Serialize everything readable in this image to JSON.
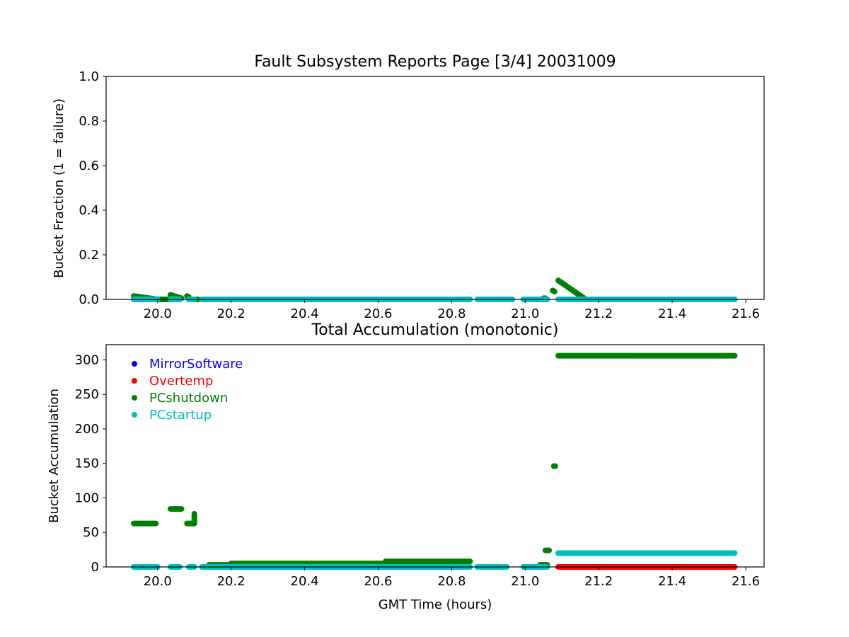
{
  "figure": {
    "top_title": "Fault Subsystem Reports Page [3/4] 20031009",
    "bottom_title": "Total Accumulation (monotonic)",
    "top_ylabel": "Bucket Fraction (1 = failure)",
    "bottom_ylabel": "Bucket Accumulation",
    "xlabel": "GMT Time (hours)"
  },
  "colors": {
    "MirrorSoftware": "#0000ff",
    "Overtemp": "#ff0000",
    "PCshutdown": "#008000",
    "PCstartup": "#00bfbf"
  },
  "chart_data": [
    {
      "type": "scatter",
      "title": "Fault Subsystem Reports Page [3/4] 20031009",
      "xlabel": "",
      "ylabel": "Bucket Fraction (1 = failure)",
      "xlim": [
        19.86,
        21.65
      ],
      "ylim": [
        0,
        1
      ],
      "xticks": [
        "20.0",
        "20.2",
        "20.4",
        "20.6",
        "20.8",
        "21.0",
        "21.2",
        "21.4",
        "21.6"
      ],
      "yticks": [
        "0.0",
        "0.2",
        "0.4",
        "0.6",
        "0.8",
        "1.0"
      ],
      "grid": false,
      "series": [
        {
          "name": "PCshutdown",
          "segments": [
            {
              "x": [
                19.935,
                20.0
              ],
              "y": [
                0.015,
                0.0
              ]
            },
            {
              "x": [
                20.0,
                20.035
              ],
              "y": [
                0.0,
                0.0
              ]
            },
            {
              "x": [
                20.035,
                20.065
              ],
              "y": [
                0.02,
                0.005
              ]
            },
            {
              "x": [
                20.08,
                20.085
              ],
              "y": [
                0.015,
                0.01
              ]
            },
            {
              "x": [
                20.085,
                20.11
              ],
              "y": [
                0.0,
                0.0
              ]
            },
            {
              "x": [
                21.05,
                21.055
              ],
              "y": [
                0.005,
                0.005
              ]
            },
            {
              "x": [
                21.075,
                21.08
              ],
              "y": [
                0.04,
                0.035
              ]
            },
            {
              "x": [
                21.09,
                21.165
              ],
              "y": [
                0.085,
                0.0
              ]
            },
            {
              "x": [
                21.165,
                21.57
              ],
              "y": [
                0.0,
                0.0
              ]
            }
          ]
        },
        {
          "name": "PCstartup",
          "segments": [
            {
              "x": [
                19.935,
                20.0
              ],
              "y": [
                0.0,
                0.0
              ]
            },
            {
              "x": [
                20.035,
                20.06
              ],
              "y": [
                0.0,
                0.0
              ]
            },
            {
              "x": [
                20.085,
                20.1
              ],
              "y": [
                0.0,
                0.0
              ]
            },
            {
              "x": [
                20.12,
                20.85
              ],
              "y": [
                0.0,
                0.0
              ]
            },
            {
              "x": [
                20.87,
                20.95
              ],
              "y": [
                0.0,
                0.0
              ]
            },
            {
              "x": [
                20.955,
                20.965
              ],
              "y": [
                0.0,
                0.0
              ]
            },
            {
              "x": [
                20.995,
                21.06
              ],
              "y": [
                0.0,
                0.0
              ]
            },
            {
              "x": [
                21.09,
                21.57
              ],
              "y": [
                0.0,
                0.0
              ]
            }
          ]
        }
      ]
    },
    {
      "type": "scatter",
      "title": "Total Accumulation (monotonic)",
      "xlabel": "GMT Time (hours)",
      "ylabel": "Bucket Accumulation",
      "xlim": [
        19.86,
        21.65
      ],
      "ylim": [
        0,
        322
      ],
      "xticks": [
        "20.0",
        "20.2",
        "20.4",
        "20.6",
        "20.8",
        "21.0",
        "21.2",
        "21.4",
        "21.6"
      ],
      "yticks": [
        "0",
        "50",
        "100",
        "150",
        "200",
        "250",
        "300"
      ],
      "grid": false,
      "legend": "top-left",
      "series": [
        {
          "name": "MirrorSoftware",
          "segments": []
        },
        {
          "name": "Overtemp",
          "segments": [
            {
              "x": [
                21.09,
                21.57
              ],
              "y": [
                0,
                0
              ]
            }
          ]
        },
        {
          "name": "PCshutdown",
          "segments": [
            {
              "x": [
                19.935,
                19.995
              ],
              "y": [
                63,
                63
              ]
            },
            {
              "x": [
                20.035,
                20.065
              ],
              "y": [
                84,
                84
              ]
            },
            {
              "x": [
                20.08,
                20.1
              ],
              "y": [
                63,
                63
              ]
            },
            {
              "x": [
                20.1,
                20.1
              ],
              "y": [
                63,
                77
              ]
            },
            {
              "x": [
                20.14,
                20.2
              ],
              "y": [
                3,
                3
              ]
            },
            {
              "x": [
                20.2,
                20.62
              ],
              "y": [
                5,
                5
              ]
            },
            {
              "x": [
                20.62,
                20.85
              ],
              "y": [
                8,
                8
              ]
            },
            {
              "x": [
                21.04,
                21.06
              ],
              "y": [
                3,
                3
              ]
            },
            {
              "x": [
                21.055,
                21.065
              ],
              "y": [
                24,
                24
              ]
            },
            {
              "x": [
                21.078,
                21.082
              ],
              "y": [
                146,
                146
              ]
            },
            {
              "x": [
                21.09,
                21.57
              ],
              "y": [
                306,
                306
              ]
            }
          ]
        },
        {
          "name": "PCstartup",
          "segments": [
            {
              "x": [
                19.935,
                20.0
              ],
              "y": [
                0,
                0
              ]
            },
            {
              "x": [
                20.035,
                20.06
              ],
              "y": [
                0,
                0
              ]
            },
            {
              "x": [
                20.085,
                20.1
              ],
              "y": [
                0,
                0
              ]
            },
            {
              "x": [
                20.12,
                20.85
              ],
              "y": [
                0,
                0
              ]
            },
            {
              "x": [
                20.87,
                20.95
              ],
              "y": [
                0,
                0
              ]
            },
            {
              "x": [
                20.995,
                21.06
              ],
              "y": [
                0,
                0
              ]
            },
            {
              "x": [
                21.09,
                21.57
              ],
              "y": [
                20,
                20
              ]
            }
          ]
        }
      ]
    }
  ]
}
